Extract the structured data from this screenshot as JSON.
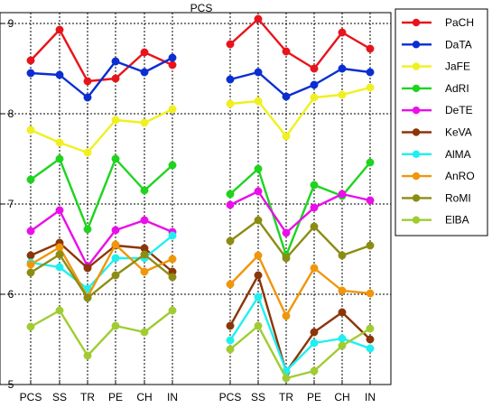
{
  "chart_data": {
    "type": "line",
    "title": "PCS",
    "xlabel": "",
    "ylabel": "",
    "ylim": [
      5,
      9.1
    ],
    "yticks": [
      5,
      6,
      7,
      8,
      9
    ],
    "categories": [
      "PCS",
      "SS",
      "TR",
      "PE",
      "CH",
      "IN"
    ],
    "grid": true,
    "legend_position": "right",
    "panels": [
      {
        "series": [
          {
            "name": "PaCH",
            "color": "#e8141c",
            "values": [
              8.59,
              8.93,
              8.36,
              8.39,
              8.68,
              8.54
            ]
          },
          {
            "name": "DaTA",
            "color": "#0a2ed1",
            "values": [
              8.45,
              8.43,
              8.18,
              8.58,
              8.46,
              8.62
            ]
          },
          {
            "name": "JaFE",
            "color": "#f0f020",
            "values": [
              7.82,
              7.68,
              7.57,
              7.93,
              7.9,
              8.05
            ]
          },
          {
            "name": "AdRI",
            "color": "#1ed41e",
            "values": [
              7.27,
              7.5,
              6.72,
              7.5,
              7.15,
              7.43
            ]
          },
          {
            "name": "DeTE",
            "color": "#ea0eea",
            "values": [
              6.7,
              6.93,
              6.31,
              6.71,
              6.82,
              6.69
            ]
          },
          {
            "name": "KeVA",
            "color": "#8b3608",
            "values": [
              6.43,
              6.57,
              6.29,
              6.54,
              6.51,
              6.25
            ]
          },
          {
            "name": "AlMA",
            "color": "#1ef0f0",
            "values": [
              6.35,
              6.3,
              6.06,
              6.4,
              6.4,
              6.65
            ]
          },
          {
            "name": "AnRO",
            "color": "#f0960a",
            "values": [
              6.33,
              6.52,
              5.97,
              6.55,
              6.25,
              6.39
            ]
          },
          {
            "name": "RoMI",
            "color": "#8c8c14",
            "values": [
              6.24,
              6.44,
              5.96,
              6.21,
              6.44,
              6.19
            ]
          },
          {
            "name": "ElBA",
            "color": "#a0cc32",
            "values": [
              5.64,
              5.82,
              5.32,
              5.65,
              5.58,
              5.82
            ]
          }
        ]
      },
      {
        "series": [
          {
            "name": "PaCH",
            "color": "#e8141c",
            "values": [
              8.77,
              9.05,
              8.69,
              8.5,
              8.9,
              8.72
            ]
          },
          {
            "name": "DaTA",
            "color": "#0a2ed1",
            "values": [
              8.38,
              8.46,
              8.19,
              8.32,
              8.5,
              8.46
            ]
          },
          {
            "name": "JaFE",
            "color": "#f0f020",
            "values": [
              8.11,
              8.14,
              7.75,
              8.18,
              8.21,
              8.29
            ]
          },
          {
            "name": "AdRI",
            "color": "#1ed41e",
            "values": [
              7.11,
              7.39,
              6.43,
              7.21,
              7.09,
              7.46
            ]
          },
          {
            "name": "DeTE",
            "color": "#ea0eea",
            "values": [
              6.99,
              7.14,
              6.68,
              6.96,
              7.11,
              7.04
            ]
          },
          {
            "name": "KeVA",
            "color": "#8b3608",
            "values": [
              5.65,
              6.21,
              5.14,
              5.58,
              5.8,
              5.5
            ]
          },
          {
            "name": "AlMA",
            "color": "#1ef0f0",
            "values": [
              5.49,
              5.97,
              5.15,
              5.46,
              5.51,
              5.4
            ]
          },
          {
            "name": "AnRO",
            "color": "#f0960a",
            "values": [
              6.11,
              6.43,
              5.76,
              6.29,
              6.04,
              6.01
            ]
          },
          {
            "name": "RoMI",
            "color": "#8c8c14",
            "values": [
              6.59,
              6.82,
              6.4,
              6.75,
              6.43,
              6.54
            ]
          },
          {
            "name": "ElBA",
            "color": "#a0cc32",
            "values": [
              5.39,
              5.65,
              5.07,
              5.15,
              5.43,
              5.62
            ]
          }
        ]
      }
    ]
  }
}
